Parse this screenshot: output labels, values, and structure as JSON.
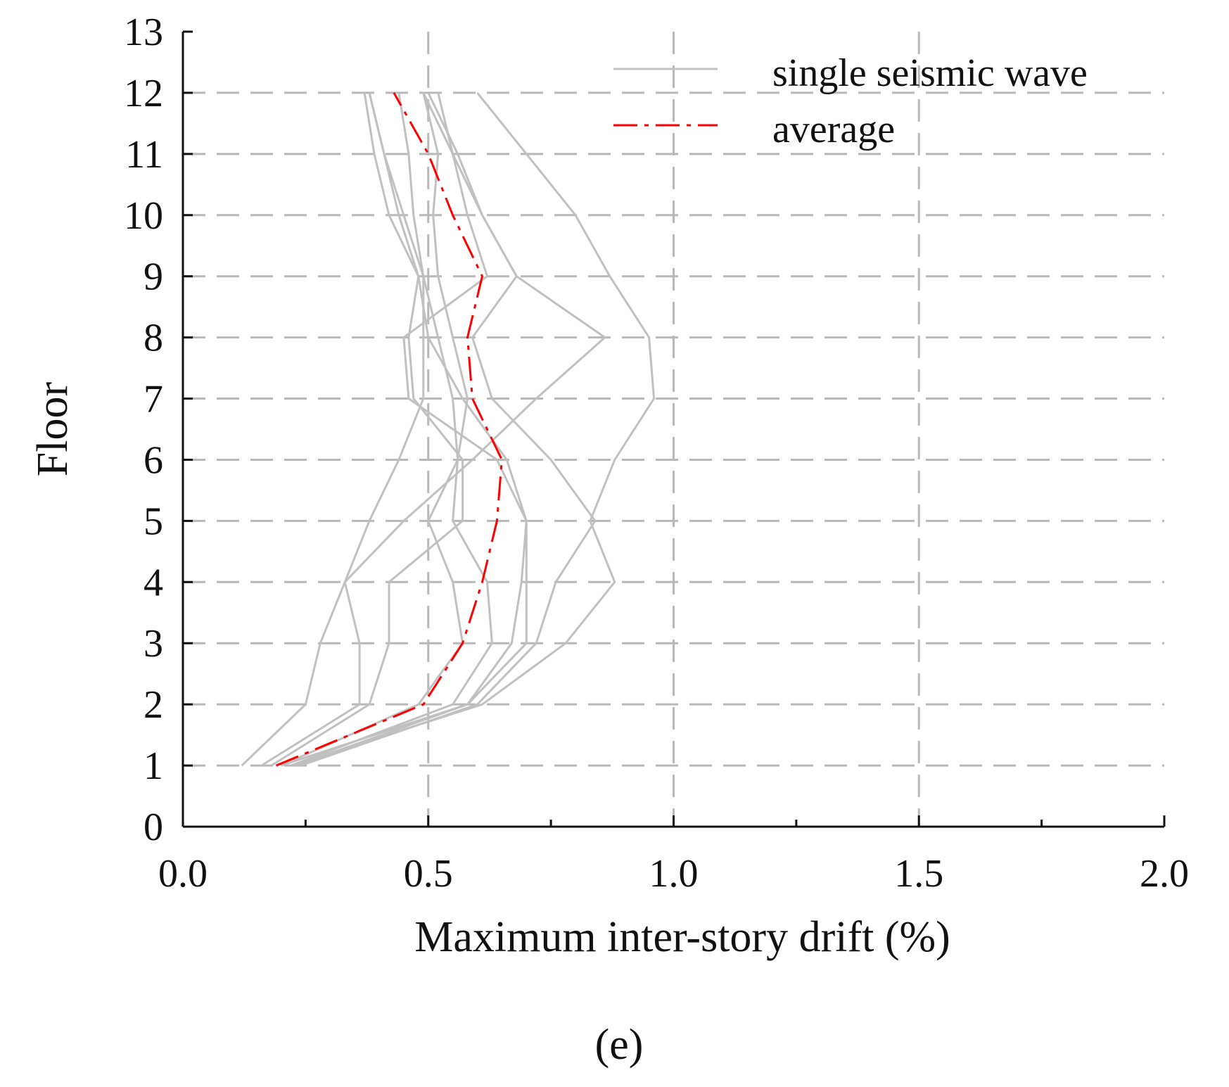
{
  "chart_data": {
    "type": "line",
    "xlabel": "Maximum inter-story drift (%)",
    "ylabel": "Floor",
    "xlim": [
      0.0,
      2.0
    ],
    "ylim": [
      0,
      13
    ],
    "x_ticks": [
      "0.0",
      "0.5",
      "1.0",
      "1.5",
      "2.0"
    ],
    "x_tick_values": [
      0.0,
      0.5,
      1.0,
      1.5,
      2.0
    ],
    "y_ticks": [
      "0",
      "1",
      "2",
      "3",
      "4",
      "5",
      "6",
      "7",
      "8",
      "9",
      "10",
      "11",
      "12",
      "13"
    ],
    "grid": true,
    "legend": {
      "position": "top-right",
      "entries": [
        {
          "label": "single seismic wave",
          "color": "#c0c0c0",
          "style": "solid"
        },
        {
          "label": "average",
          "color": "#ff0000",
          "style": "dash-dot"
        }
      ]
    },
    "floors": [
      1,
      2,
      3,
      4,
      5,
      6,
      7,
      8,
      9,
      10,
      11,
      12
    ],
    "series": [
      {
        "name": "single seismic wave",
        "values": [
          0.12,
          0.25,
          0.28,
          0.33,
          0.38,
          0.44,
          0.49,
          0.49,
          0.49,
          0.47,
          0.46,
          0.44
        ]
      },
      {
        "name": "single seismic wave",
        "values": [
          0.16,
          0.36,
          0.36,
          0.33,
          0.45,
          0.59,
          0.72,
          0.86,
          0.68,
          0.61,
          0.55,
          0.49
        ]
      },
      {
        "name": "single seismic wave",
        "values": [
          0.18,
          0.38,
          0.42,
          0.42,
          0.57,
          0.57,
          0.47,
          0.46,
          0.48,
          0.42,
          0.39,
          0.37
        ]
      },
      {
        "name": "single seismic wave",
        "values": [
          0.2,
          0.48,
          0.57,
          0.55,
          0.5,
          0.56,
          0.55,
          0.52,
          0.49,
          0.45,
          0.41,
          0.38
        ]
      },
      {
        "name": "single seismic wave",
        "values": [
          0.22,
          0.55,
          0.63,
          0.62,
          0.55,
          0.56,
          0.58,
          0.55,
          0.52,
          0.51,
          0.52,
          0.49
        ]
      },
      {
        "name": "single seismic wave",
        "values": [
          0.23,
          0.58,
          0.67,
          0.69,
          0.7,
          0.66,
          0.57,
          0.5,
          0.48,
          0.44,
          0.41,
          0.38
        ]
      },
      {
        "name": "single seismic wave",
        "values": [
          0.24,
          0.6,
          0.72,
          0.76,
          0.84,
          0.75,
          0.63,
          0.59,
          0.68,
          0.61,
          0.56,
          0.5
        ]
      },
      {
        "name": "single seismic wave",
        "values": [
          0.22,
          0.61,
          0.78,
          0.88,
          0.83,
          0.88,
          0.96,
          0.95,
          0.87,
          0.8,
          0.7,
          0.6
        ]
      },
      {
        "name": "single seismic wave",
        "values": [
          0.2,
          0.58,
          0.7,
          0.7,
          0.7,
          0.64,
          0.46,
          0.45,
          0.62,
          0.58,
          0.55,
          0.52
        ]
      },
      {
        "name": "average",
        "values": [
          0.19,
          0.49,
          0.57,
          0.61,
          0.64,
          0.65,
          0.59,
          0.58,
          0.61,
          0.55,
          0.5,
          0.43
        ]
      }
    ]
  },
  "panel_label": "(e)"
}
